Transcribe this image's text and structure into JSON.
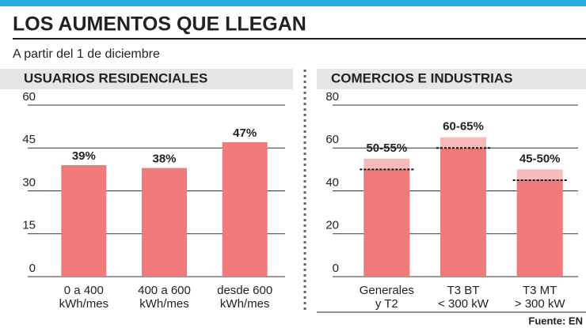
{
  "title": "LOS AUMENTOS QUE LLEGAN",
  "subtitle": "A partir del 1 de diciembre",
  "source": "Fuente: EN",
  "chart_data": [
    {
      "type": "bar",
      "title": "USUARIOS RESIDENCIALES",
      "categories": [
        "0 a 400\nkWh/mes",
        "400 a 600\nkWh/mes",
        "desde 600\nkWh/mes"
      ],
      "values": [
        39,
        38,
        47
      ],
      "value_labels": [
        "39%",
        "38%",
        "47%"
      ],
      "color": "#f07a7a",
      "ylim": [
        0,
        60
      ],
      "yticks": [
        0,
        15,
        30,
        45,
        60
      ],
      "grid": true
    },
    {
      "type": "range_bar",
      "title": "COMERCIOS E INDUSTRIAS",
      "categories": [
        "Generales\ny T2",
        "T3 BT\n< 300 kW",
        "T3 MT\n> 300 kW"
      ],
      "low": [
        50,
        60,
        45
      ],
      "high": [
        55,
        65,
        50
      ],
      "value_labels": [
        "50-55%",
        "60-65%",
        "45-50%"
      ],
      "color": "#f07a7a",
      "range_color": "#f7b9b9",
      "ylim": [
        0,
        80
      ],
      "yticks": [
        0,
        20,
        40,
        60,
        80
      ],
      "grid": true
    }
  ]
}
